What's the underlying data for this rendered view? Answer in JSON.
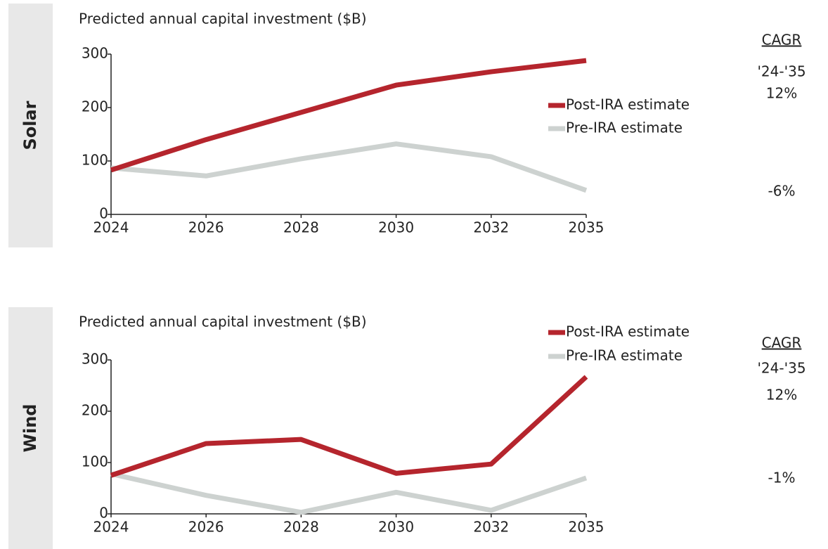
{
  "chart_data": [
    {
      "type": "line",
      "panel_label": "Solar",
      "title": "Predicted annual capital investment ($B)",
      "categories": [
        "2024",
        "2026",
        "2028",
        "2030",
        "2032",
        "2035"
      ],
      "series": [
        {
          "name": "Post-IRA estimate",
          "color": "#b5252d",
          "values": [
            83,
            140,
            191,
            242,
            267,
            288
          ]
        },
        {
          "name": "Pre-IRA estimate",
          "color": "#cdd2d0",
          "values": [
            87,
            72,
            104,
            132,
            108,
            45
          ]
        }
      ],
      "ylim": [
        0,
        300
      ],
      "yticks": [
        0,
        100,
        200,
        300
      ],
      "annotations": [
        "CAGR",
        "'24-'35",
        "12%",
        "-6%"
      ]
    },
    {
      "type": "line",
      "panel_label": "Wind",
      "title": "Predicted annual capital investment ($B)",
      "categories": [
        "2024",
        "2026",
        "2028",
        "2030",
        "2032",
        "2035"
      ],
      "series": [
        {
          "name": "Post-IRA estimate",
          "color": "#b5252d",
          "values": [
            75,
            137,
            145,
            79,
            97,
            267
          ]
        },
        {
          "name": "Pre-IRA estimate",
          "color": "#cdd2d0",
          "values": [
            78,
            36,
            3,
            42,
            7,
            70
          ]
        }
      ],
      "ylim": [
        0,
        300
      ],
      "yticks": [
        0,
        100,
        200,
        300
      ],
      "annotations": [
        "CAGR",
        "'24-'35",
        "12%",
        "-1%"
      ]
    }
  ]
}
